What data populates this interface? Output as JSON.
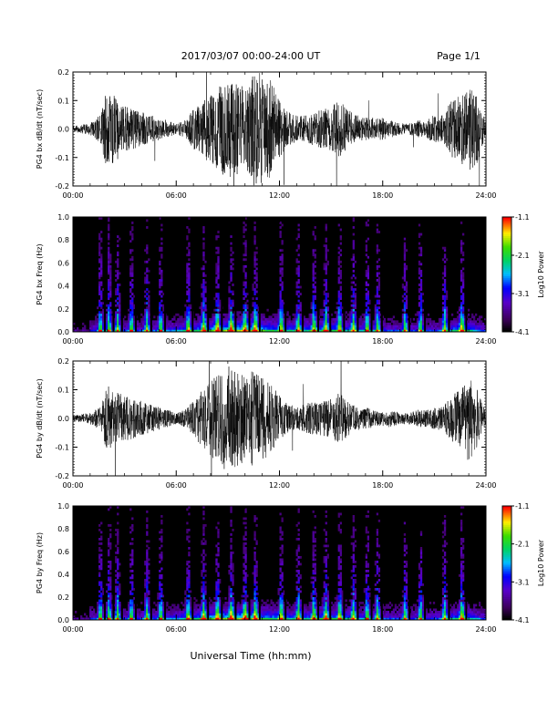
{
  "header": {
    "title": "2017/03/07  00:00-24:00 UT",
    "page": "Page 1/1"
  },
  "footer": {
    "xlabel": "Universal Time (hh:mm)"
  },
  "chart_data": [
    {
      "type": "line",
      "ylabel": "PG4 bx dB/dt (nT/sec)",
      "xlim": [
        0,
        24
      ],
      "ylim": [
        -0.2,
        0.2
      ],
      "yticks": [
        "0.2",
        "0.1",
        "0.0",
        "-0.1",
        "-0.2"
      ],
      "xticks": [
        "00:00",
        "06:00",
        "12:00",
        "18:00",
        "24:00"
      ],
      "envelope": {
        "hours": [
          0,
          1,
          1.6,
          2,
          2.4,
          3,
          4,
          5,
          5.5,
          6,
          6.5,
          7,
          7.5,
          8,
          8.5,
          9,
          9.5,
          10,
          10.5,
          11,
          11.5,
          12,
          12.5,
          13,
          13.5,
          14,
          14.5,
          15,
          15.5,
          16,
          16.5,
          17,
          17.5,
          18,
          18.5,
          19,
          19.5,
          20,
          20.5,
          21,
          21.5,
          22,
          22.5,
          23,
          23.5,
          24
        ],
        "amplitude_nT_per_s": [
          0.01,
          0.02,
          0.05,
          0.15,
          0.12,
          0.08,
          0.06,
          0.04,
          0.03,
          0.02,
          0.03,
          0.07,
          0.1,
          0.12,
          0.15,
          0.18,
          0.16,
          0.15,
          0.2,
          0.2,
          0.17,
          0.1,
          0.06,
          0.05,
          0.05,
          0.06,
          0.07,
          0.08,
          0.1,
          0.07,
          0.05,
          0.04,
          0.04,
          0.04,
          0.03,
          0.02,
          0.02,
          0.03,
          0.03,
          0.05,
          0.05,
          0.1,
          0.12,
          0.15,
          0.12,
          0.02
        ]
      }
    },
    {
      "type": "heatmap",
      "ylabel": "PG4 bx Freq (Hz)",
      "xlim": [
        0,
        24
      ],
      "ylim": [
        0,
        1
      ],
      "yticks": [
        "1.0",
        "0.8",
        "0.6",
        "0.4",
        "0.2",
        "0.0"
      ],
      "xticks": [
        "00:00",
        "06:00",
        "12:00",
        "18:00",
        "24:00"
      ],
      "colorbar": {
        "label": "Log10 Power",
        "ticks": [
          "-1.1",
          "-2.1",
          "-3.1",
          "-4.1"
        ],
        "range": [
          -4.1,
          -1.1
        ]
      },
      "bursts_hours": [
        1.6,
        2.1,
        2.6,
        3.4,
        4.3,
        5.1,
        6.7,
        7.6,
        8.4,
        9.2,
        10.0,
        10.6,
        12.1,
        13.1,
        14.0,
        14.7,
        15.5,
        16.3,
        17.1,
        17.7,
        19.3,
        20.2,
        21.6,
        22.6
      ]
    },
    {
      "type": "line",
      "ylabel": "PG4 by dB/dt (nT/sec)",
      "xlim": [
        0,
        24
      ],
      "ylim": [
        -0.2,
        0.2
      ],
      "yticks": [
        "0.2",
        "0.1",
        "0.0",
        "-0.1",
        "-0.2"
      ],
      "xticks": [
        "00:00",
        "06:00",
        "12:00",
        "18:00",
        "24:00"
      ],
      "envelope": {
        "hours": [
          0,
          1,
          1.6,
          2,
          2.4,
          3,
          4,
          5,
          5.5,
          6,
          6.5,
          7,
          7.5,
          8,
          8.5,
          9,
          9.5,
          10,
          10.5,
          11,
          11.5,
          12,
          12.5,
          13,
          13.5,
          14,
          14.5,
          15,
          15.5,
          16,
          16.5,
          17,
          17.5,
          18,
          18.5,
          19,
          19.5,
          20,
          20.5,
          21,
          21.5,
          22,
          22.5,
          23,
          23.5,
          24
        ],
        "amplitude_nT_per_s": [
          0.01,
          0.02,
          0.04,
          0.12,
          0.1,
          0.08,
          0.06,
          0.04,
          0.03,
          0.02,
          0.03,
          0.06,
          0.1,
          0.13,
          0.16,
          0.19,
          0.17,
          0.15,
          0.17,
          0.15,
          0.12,
          0.08,
          0.05,
          0.04,
          0.05,
          0.06,
          0.06,
          0.07,
          0.09,
          0.06,
          0.04,
          0.04,
          0.03,
          0.03,
          0.03,
          0.02,
          0.02,
          0.03,
          0.03,
          0.04,
          0.04,
          0.08,
          0.1,
          0.15,
          0.1,
          0.02
        ]
      }
    },
    {
      "type": "heatmap",
      "ylabel": "PG4 by Freq (Hz)",
      "xlim": [
        0,
        24
      ],
      "ylim": [
        0,
        1
      ],
      "yticks": [
        "1.0",
        "0.8",
        "0.6",
        "0.4",
        "0.2",
        "0.0"
      ],
      "xticks": [
        "00:00",
        "06:00",
        "12:00",
        "18:00",
        "24:00"
      ],
      "colorbar": {
        "label": "Log10 Power",
        "ticks": [
          "-1.1",
          "-2.1",
          "-3.1",
          "-4.1"
        ],
        "range": [
          -4.1,
          -1.1
        ]
      },
      "bursts_hours": [
        1.6,
        2.1,
        2.6,
        3.4,
        4.3,
        5.1,
        6.7,
        7.6,
        8.4,
        9.2,
        10.0,
        10.6,
        12.1,
        13.1,
        14.0,
        14.7,
        15.5,
        16.3,
        17.1,
        17.7,
        19.3,
        20.2,
        21.6,
        22.6
      ]
    }
  ]
}
